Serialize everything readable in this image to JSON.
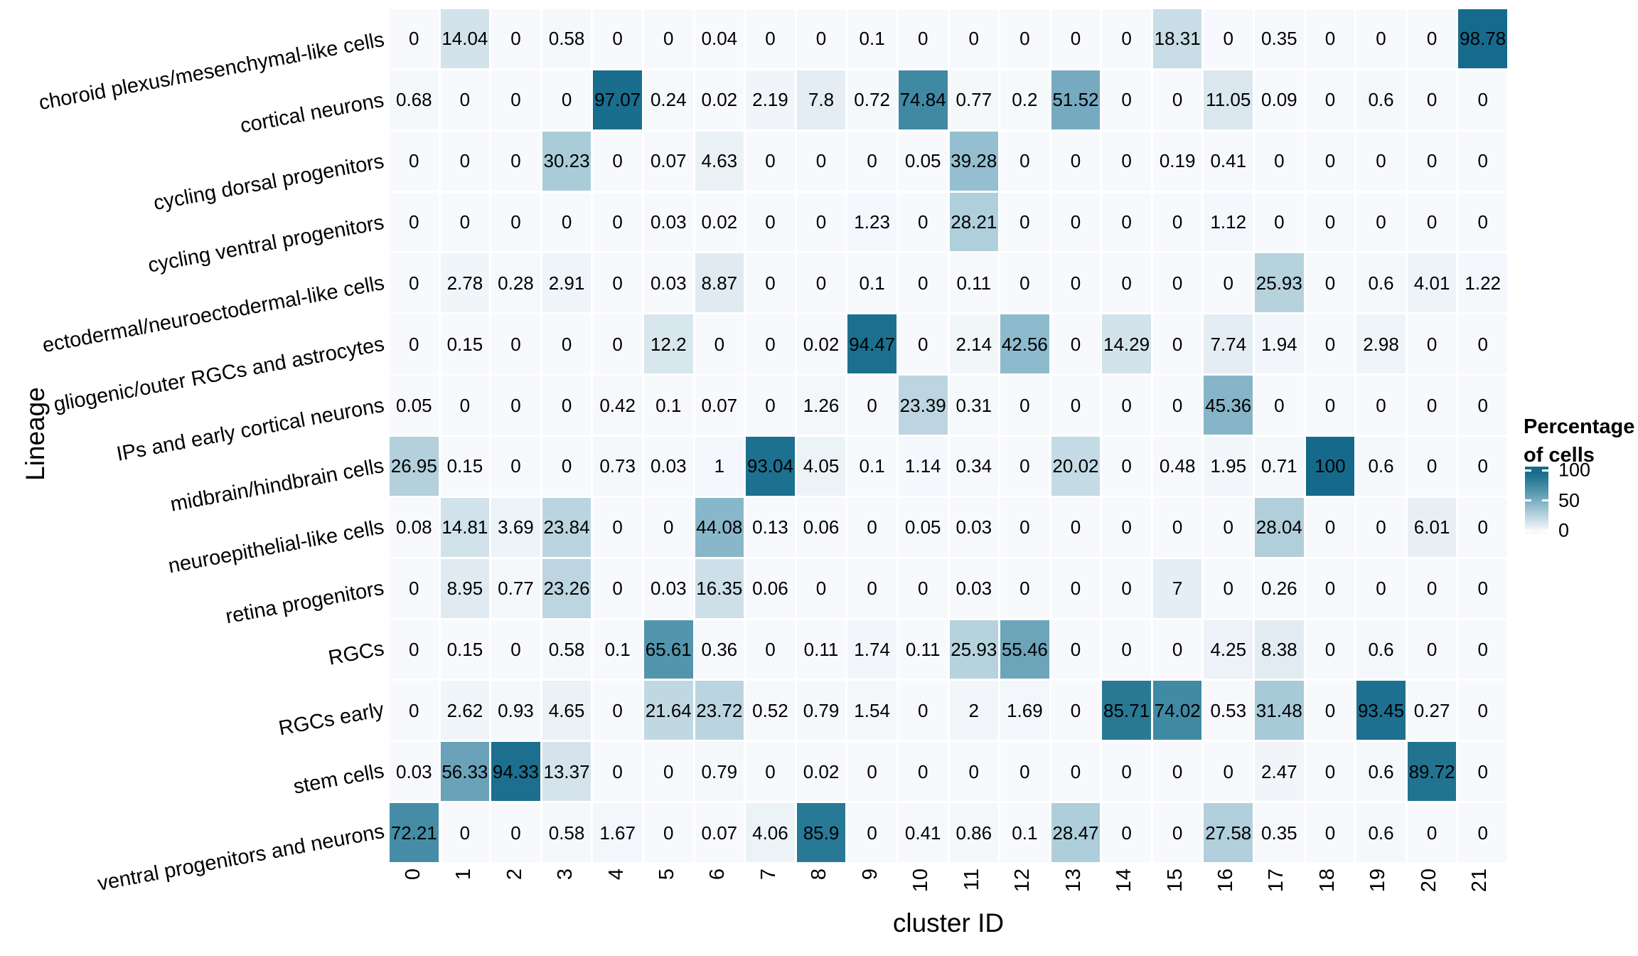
{
  "chart_data": {
    "type": "heatmap",
    "xlabel": "cluster ID",
    "ylabel": "Lineage",
    "columns": [
      "0",
      "1",
      "2",
      "3",
      "4",
      "5",
      "6",
      "7",
      "8",
      "9",
      "10",
      "11",
      "12",
      "13",
      "14",
      "15",
      "16",
      "17",
      "18",
      "19",
      "20",
      "21"
    ],
    "rows": [
      "choroid plexus/mesenchymal-like cells",
      "cortical neurons",
      "cycling dorsal progenitors",
      "cycling ventral progenitors",
      "ectodermal/neuroectodermal-like cells",
      "gliogenic/outer RGCs and astrocytes",
      "IPs and early cortical neurons",
      "midbrain/hindbrain cells",
      "neuroepithelial-like cells",
      "retina progenitors",
      "RGCs",
      "RGCs early",
      "stem cells",
      "ventral progenitors and neurons"
    ],
    "values": [
      [
        "0",
        "14.04",
        "0",
        "0.58",
        "0",
        "0",
        "0.04",
        "0",
        "0",
        "0.1",
        "0",
        "0",
        "0",
        "0",
        "0",
        "18.31",
        "0",
        "0.35",
        "0",
        "0",
        "0",
        "98.78"
      ],
      [
        "0.68",
        "0",
        "0",
        "0",
        "97.07",
        "0.24",
        "0.02",
        "2.19",
        "7.8",
        "0.72",
        "74.84",
        "0.77",
        "0.2",
        "51.52",
        "0",
        "0",
        "11.05",
        "0.09",
        "0",
        "0.6",
        "0",
        "0"
      ],
      [
        "0",
        "0",
        "0",
        "30.23",
        "0",
        "0.07",
        "4.63",
        "0",
        "0",
        "0",
        "0.05",
        "39.28",
        "0",
        "0",
        "0",
        "0.19",
        "0.41",
        "0",
        "0",
        "0",
        "0",
        "0"
      ],
      [
        "0",
        "0",
        "0",
        "0",
        "0",
        "0.03",
        "0.02",
        "0",
        "0",
        "1.23",
        "0",
        "28.21",
        "0",
        "0",
        "0",
        "0",
        "1.12",
        "0",
        "0",
        "0",
        "0",
        "0"
      ],
      [
        "0",
        "2.78",
        "0.28",
        "2.91",
        "0",
        "0.03",
        "8.87",
        "0",
        "0",
        "0.1",
        "0",
        "0.11",
        "0",
        "0",
        "0",
        "0",
        "0",
        "25.93",
        "0",
        "0.6",
        "4.01",
        "1.22"
      ],
      [
        "0",
        "0.15",
        "0",
        "0",
        "0",
        "12.2",
        "0",
        "0",
        "0.02",
        "94.47",
        "0",
        "2.14",
        "42.56",
        "0",
        "14.29",
        "0",
        "7.74",
        "1.94",
        "0",
        "2.98",
        "0",
        "0"
      ],
      [
        "0.05",
        "0",
        "0",
        "0",
        "0.42",
        "0.1",
        "0.07",
        "0",
        "1.26",
        "0",
        "23.39",
        "0.31",
        "0",
        "0",
        "0",
        "0",
        "45.36",
        "0",
        "0",
        "0",
        "0",
        "0"
      ],
      [
        "26.95",
        "0.15",
        "0",
        "0",
        "0.73",
        "0.03",
        "1",
        "93.04",
        "4.05",
        "0.1",
        "1.14",
        "0.34",
        "0",
        "20.02",
        "0",
        "0.48",
        "1.95",
        "0.71",
        "100",
        "0.6",
        "0",
        "0"
      ],
      [
        "0.08",
        "14.81",
        "3.69",
        "23.84",
        "0",
        "0",
        "44.08",
        "0.13",
        "0.06",
        "0",
        "0.05",
        "0.03",
        "0",
        "0",
        "0",
        "0",
        "0",
        "28.04",
        "0",
        "0",
        "6.01",
        "0"
      ],
      [
        "0",
        "8.95",
        "0.77",
        "23.26",
        "0",
        "0.03",
        "16.35",
        "0.06",
        "0",
        "0",
        "0",
        "0.03",
        "0",
        "0",
        "0",
        "7",
        "0",
        "0.26",
        "0",
        "0",
        "0",
        "0"
      ],
      [
        "0",
        "0.15",
        "0",
        "0.58",
        "0.1",
        "65.61",
        "0.36",
        "0",
        "0.11",
        "1.74",
        "0.11",
        "25.93",
        "55.46",
        "0",
        "0",
        "0",
        "4.25",
        "8.38",
        "0",
        "0.6",
        "0",
        "0"
      ],
      [
        "0",
        "2.62",
        "0.93",
        "4.65",
        "0",
        "21.64",
        "23.72",
        "0.52",
        "0.79",
        "1.54",
        "0",
        "2",
        "1.69",
        "0",
        "85.71",
        "74.02",
        "0.53",
        "31.48",
        "0",
        "93.45",
        "0.27",
        "0"
      ],
      [
        "0.03",
        "56.33",
        "94.33",
        "13.37",
        "0",
        "0",
        "0.79",
        "0",
        "0.02",
        "0",
        "0",
        "0",
        "0",
        "0",
        "0",
        "0",
        "0",
        "2.47",
        "0",
        "0.6",
        "89.72",
        "0"
      ],
      [
        "72.21",
        "0",
        "0",
        "0.58",
        "1.67",
        "0",
        "0.07",
        "4.06",
        "85.9",
        "0",
        "0.41",
        "0.86",
        "0.1",
        "28.47",
        "0",
        "0",
        "27.58",
        "0.35",
        "0",
        "0.6",
        "0",
        "0"
      ]
    ],
    "legend": {
      "title": "Percentage of cells",
      "ticks": [
        "100",
        "50",
        "0"
      ],
      "tick_values": [
        100,
        50,
        0
      ]
    },
    "colors": {
      "scale_anchors": [
        [
          0,
          "#f7f9fc"
        ],
        [
          10,
          "#dde9f0"
        ],
        [
          20,
          "#c4dae4"
        ],
        [
          30,
          "#abccd9"
        ],
        [
          40,
          "#93becf"
        ],
        [
          50,
          "#7aadc2"
        ],
        [
          60,
          "#619cb4"
        ],
        [
          70,
          "#4a90a9"
        ],
        [
          80,
          "#33819c"
        ],
        [
          90,
          "#217390"
        ],
        [
          100,
          "#156a8c"
        ]
      ],
      "gap": "#ffffff",
      "cell_text": "#000000"
    },
    "layout": {
      "grid": "white gaps between tiles",
      "legend_position": "right",
      "row_label_angle_deg": -10.5,
      "col_label_angle_deg": -90
    }
  }
}
